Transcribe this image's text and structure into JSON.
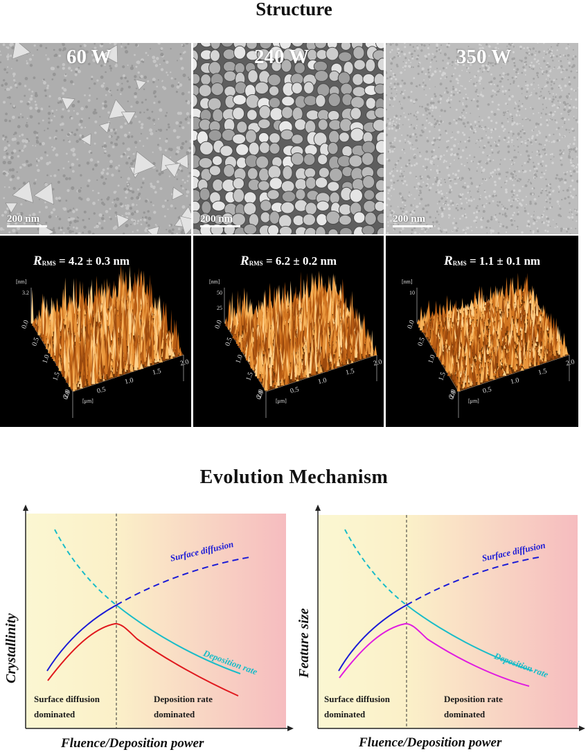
{
  "structure": {
    "title": "Structure"
  },
  "sem_panels": [
    {
      "power": "60 W",
      "scale": "200 nm"
    },
    {
      "power": "240 W",
      "scale": "200 nm"
    },
    {
      "power": "350 W",
      "scale": "200 nm"
    }
  ],
  "afm_panels": [
    {
      "r_symbol": "R",
      "r_sub": "RMS",
      "r_value": " = 4.2 ± 0.3 nm",
      "z_unit": "[nm]",
      "z_max": "3.2",
      "z_mid": "",
      "xy_unit": "[μm]"
    },
    {
      "r_symbol": "R",
      "r_sub": "RMS",
      "r_value": " = 6.2 ± 0.2 nm",
      "z_unit": "[nm]",
      "z_max": "50",
      "z_mid": "25",
      "xy_unit": "[μm]"
    },
    {
      "r_symbol": "R",
      "r_sub": "RMS",
      "r_value": " = 1.1 ± 0.1 nm",
      "z_unit": "[nm]",
      "z_max": "10",
      "z_mid": "",
      "xy_unit": "[μm]"
    }
  ],
  "afm_axis_ticks": {
    "left": [
      "0.0",
      "0.5",
      "1.0",
      "1.5",
      "2.0"
    ],
    "front": [
      "0.0",
      "0.5",
      "1.0",
      "1.5",
      "2.0"
    ]
  },
  "evolution": {
    "title": "Evolution Mechanism"
  },
  "mechanism_diagrams": [
    {
      "ylabel": "Crystallinity",
      "xlabel": "Fluence/Deposition power",
      "left_region": [
        "Surface diffusion",
        "dominated"
      ],
      "right_region": [
        "Deposition rate",
        "dominated"
      ],
      "curve_label_diffusion": "Surface diffusion",
      "curve_label_deposition": "Deposition rate",
      "result_curve_color": "#e0191e"
    },
    {
      "ylabel": "Feature size",
      "xlabel": "Fluence/Deposition power",
      "left_region": [
        "Surface diffusion",
        "dominated"
      ],
      "right_region": [
        "Deposition rate",
        "dominated"
      ],
      "curve_label_diffusion": "Surface diffusion",
      "curve_label_deposition": "Deposition rate",
      "result_curve_color": "#e01be0"
    }
  ],
  "colors": {
    "diffusion_curve": "#1b1bd6",
    "deposition_curve": "#19bcc8",
    "bg_left": "#fbf6cf",
    "bg_right": "#f6bcbc"
  }
}
